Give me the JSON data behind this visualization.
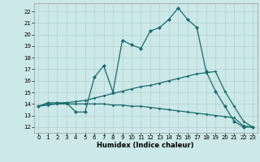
{
  "title": "",
  "xlabel": "Humidex (Indice chaleur)",
  "bg_color": "#cce8e8",
  "line_color": "#1a6b6b",
  "xlim": [
    -0.5,
    23.5
  ],
  "ylim": [
    11.5,
    22.7
  ],
  "xticks": [
    0,
    1,
    2,
    3,
    4,
    5,
    6,
    7,
    8,
    9,
    10,
    11,
    12,
    13,
    14,
    15,
    16,
    17,
    18,
    19,
    20,
    21,
    22,
    23
  ],
  "yticks": [
    12,
    13,
    14,
    15,
    16,
    17,
    18,
    19,
    20,
    21,
    22
  ],
  "line1_x": [
    0,
    1,
    2,
    3,
    4,
    5,
    6,
    7,
    8,
    9,
    10,
    11,
    12,
    13,
    14,
    15,
    16,
    17,
    18,
    19,
    20,
    21,
    22,
    23
  ],
  "line1_y": [
    13.8,
    14.1,
    14.1,
    14.1,
    13.3,
    13.3,
    16.3,
    17.3,
    15.0,
    19.5,
    19.1,
    18.8,
    20.3,
    20.6,
    21.3,
    22.3,
    21.3,
    20.6,
    16.8,
    15.1,
    13.8,
    12.5,
    12.0,
    12.0
  ],
  "line2_x": [
    0,
    1,
    2,
    3,
    4,
    5,
    6,
    7,
    8,
    9,
    10,
    11,
    12,
    13,
    14,
    15,
    16,
    17,
    18,
    19,
    20,
    21,
    22,
    23
  ],
  "line2_y": [
    13.8,
    14.0,
    14.0,
    14.1,
    14.2,
    14.3,
    14.5,
    14.7,
    14.9,
    15.1,
    15.3,
    15.5,
    15.6,
    15.8,
    16.0,
    16.2,
    16.4,
    16.6,
    16.7,
    16.8,
    15.1,
    13.8,
    12.5,
    12.0
  ],
  "line3_x": [
    0,
    1,
    2,
    3,
    4,
    5,
    6,
    7,
    8,
    9,
    10,
    11,
    12,
    13,
    14,
    15,
    16,
    17,
    18,
    19,
    20,
    21,
    22,
    23
  ],
  "line3_y": [
    13.8,
    13.9,
    14.0,
    14.0,
    14.0,
    14.0,
    14.0,
    14.0,
    13.9,
    13.9,
    13.8,
    13.8,
    13.7,
    13.6,
    13.5,
    13.4,
    13.3,
    13.2,
    13.1,
    13.0,
    12.9,
    12.8,
    12.1,
    12.0
  ],
  "grid_color": "#aacccc",
  "tick_fontsize": 5.0,
  "xlabel_fontsize": 6.0,
  "marker_size": 2.5,
  "linewidth": 0.9
}
